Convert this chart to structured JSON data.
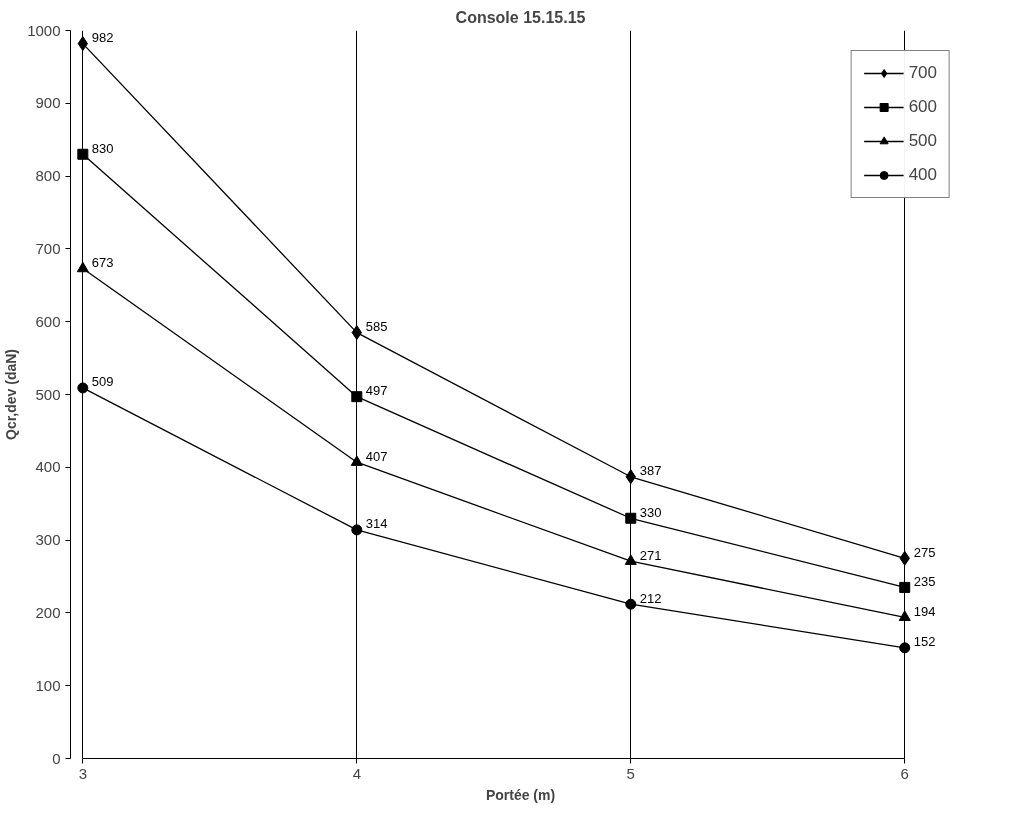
{
  "chart_data": {
    "type": "line",
    "title": "Console 15.15.15",
    "xlabel": "Portée (m)",
    "ylabel": "Qcr,dev (daN)",
    "x": [
      3,
      4,
      5,
      6
    ],
    "series": [
      {
        "name": "700",
        "color": "#000000",
        "marker": "diamond",
        "values": [
          982,
          585,
          387,
          275
        ]
      },
      {
        "name": "600",
        "color": "#000000",
        "marker": "square",
        "values": [
          830,
          497,
          330,
          235
        ]
      },
      {
        "name": "500",
        "color": "#000000",
        "marker": "triangle",
        "values": [
          673,
          407,
          271,
          194
        ]
      },
      {
        "name": "400",
        "color": "#000000",
        "marker": "circle",
        "values": [
          509,
          314,
          212,
          152
        ]
      }
    ],
    "xlim": [
      3,
      6
    ],
    "xticks": [
      3,
      4,
      5,
      6
    ],
    "ylim": [
      0,
      1000
    ],
    "yticks": [
      0,
      100,
      200,
      300,
      400,
      500,
      600,
      700,
      800,
      900,
      1000
    ],
    "grid": "x",
    "legend": "top right",
    "data_labels": true,
    "line_style": "solid"
  }
}
